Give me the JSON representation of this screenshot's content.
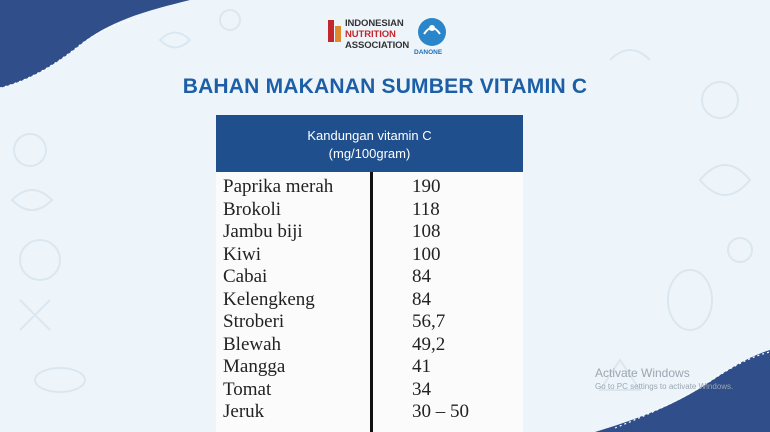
{
  "logo": {
    "line1": "INDONESIAN",
    "line2": "NUTRITION",
    "line3": "ASSOCIATION",
    "partner": "DANONE"
  },
  "title": "BAHAN MAKANAN SUMBER VITAMIN C",
  "table": {
    "header_line1": "Kandungan vitamin C",
    "header_line2": "(mg/100gram)",
    "rows": [
      {
        "food": "Paprika merah",
        "value": "190"
      },
      {
        "food": "Brokoli",
        "value": "118"
      },
      {
        "food": "Jambu biji",
        "value": "108"
      },
      {
        "food": "Kiwi",
        "value": "100"
      },
      {
        "food": "Cabai",
        "value": "84"
      },
      {
        "food": "Kelengkeng",
        "value": "84"
      },
      {
        "food": "Stroberi",
        "value": "56,7"
      },
      {
        "food": "Blewah",
        "value": "49,2"
      },
      {
        "food": "Mangga",
        "value": "41"
      },
      {
        "food": "Tomat",
        "value": "34"
      },
      {
        "food": "Jeruk",
        "value": "30 – 50"
      }
    ]
  },
  "watermark": {
    "line1": "Activate Windows",
    "line2": "Go to PC settings to activate Windows."
  },
  "colors": {
    "title": "#1d5fa6",
    "header_bg": "#1f4f8d",
    "corner": "#2f4e8a"
  }
}
